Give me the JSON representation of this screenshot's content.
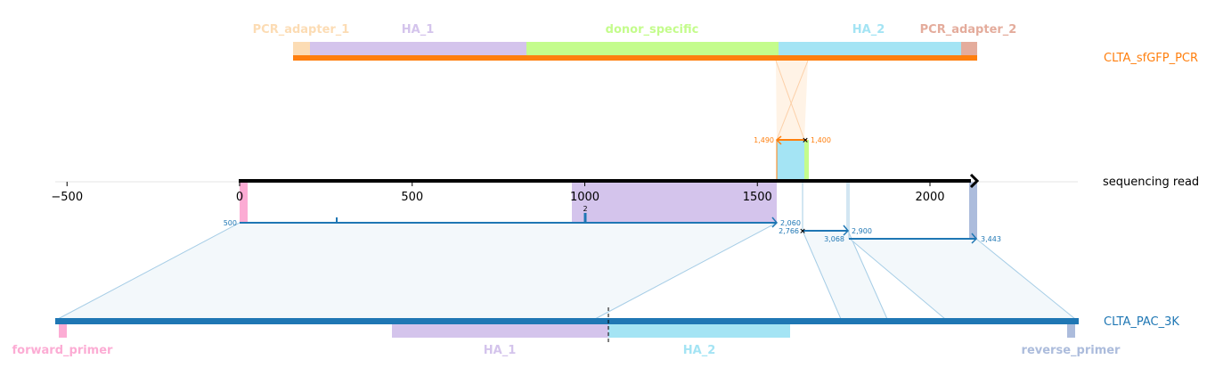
{
  "sequences": {
    "donor": {
      "name": "CLTA_sfGFP_PCR",
      "color": "#ff7f0e"
    },
    "read": {
      "name": "sequencing read",
      "color": "#000000"
    },
    "reference": {
      "name": "CLTA_PAC_3K",
      "color": "#1f77b4"
    }
  },
  "donor_features": [
    {
      "label": "PCR_adapter_1",
      "color": "#fcdcb4"
    },
    {
      "label": "HA_1",
      "color": "#d4c4ec"
    },
    {
      "label": "donor_specific",
      "color": "#c4fc8c"
    },
    {
      "label": "HA_2",
      "color": "#a4e4f4"
    },
    {
      "label": "PCR_adapter_2",
      "color": "#e4ac9c"
    }
  ],
  "reference_features": [
    {
      "label": "forward_primer",
      "color": "#fcacd4"
    },
    {
      "label": "HA_1",
      "color": "#d4c4ec"
    },
    {
      "label": "HA_2",
      "color": "#a4e4f4"
    },
    {
      "label": "reverse_primer",
      "color": "#acbcdc"
    }
  ],
  "read_axis": {
    "ticks": [
      "-500",
      "0",
      "500",
      "1000",
      "1500",
      "2000"
    ]
  },
  "alignments": {
    "donor_coords": [
      "1,490",
      "1,400"
    ],
    "reference_coords": [
      "500",
      "2,060",
      "2,766",
      "2,900",
      "3,068",
      "3,443"
    ],
    "insertion_label": "2"
  },
  "colors": {
    "orange": "#ff7f0e",
    "blue": "#1f77b4",
    "light_blue": "#a6cde6",
    "fill_blue": "#eef5fa",
    "fill_orange": "#fff3e6",
    "gray_axis": "#d9d9d9"
  }
}
